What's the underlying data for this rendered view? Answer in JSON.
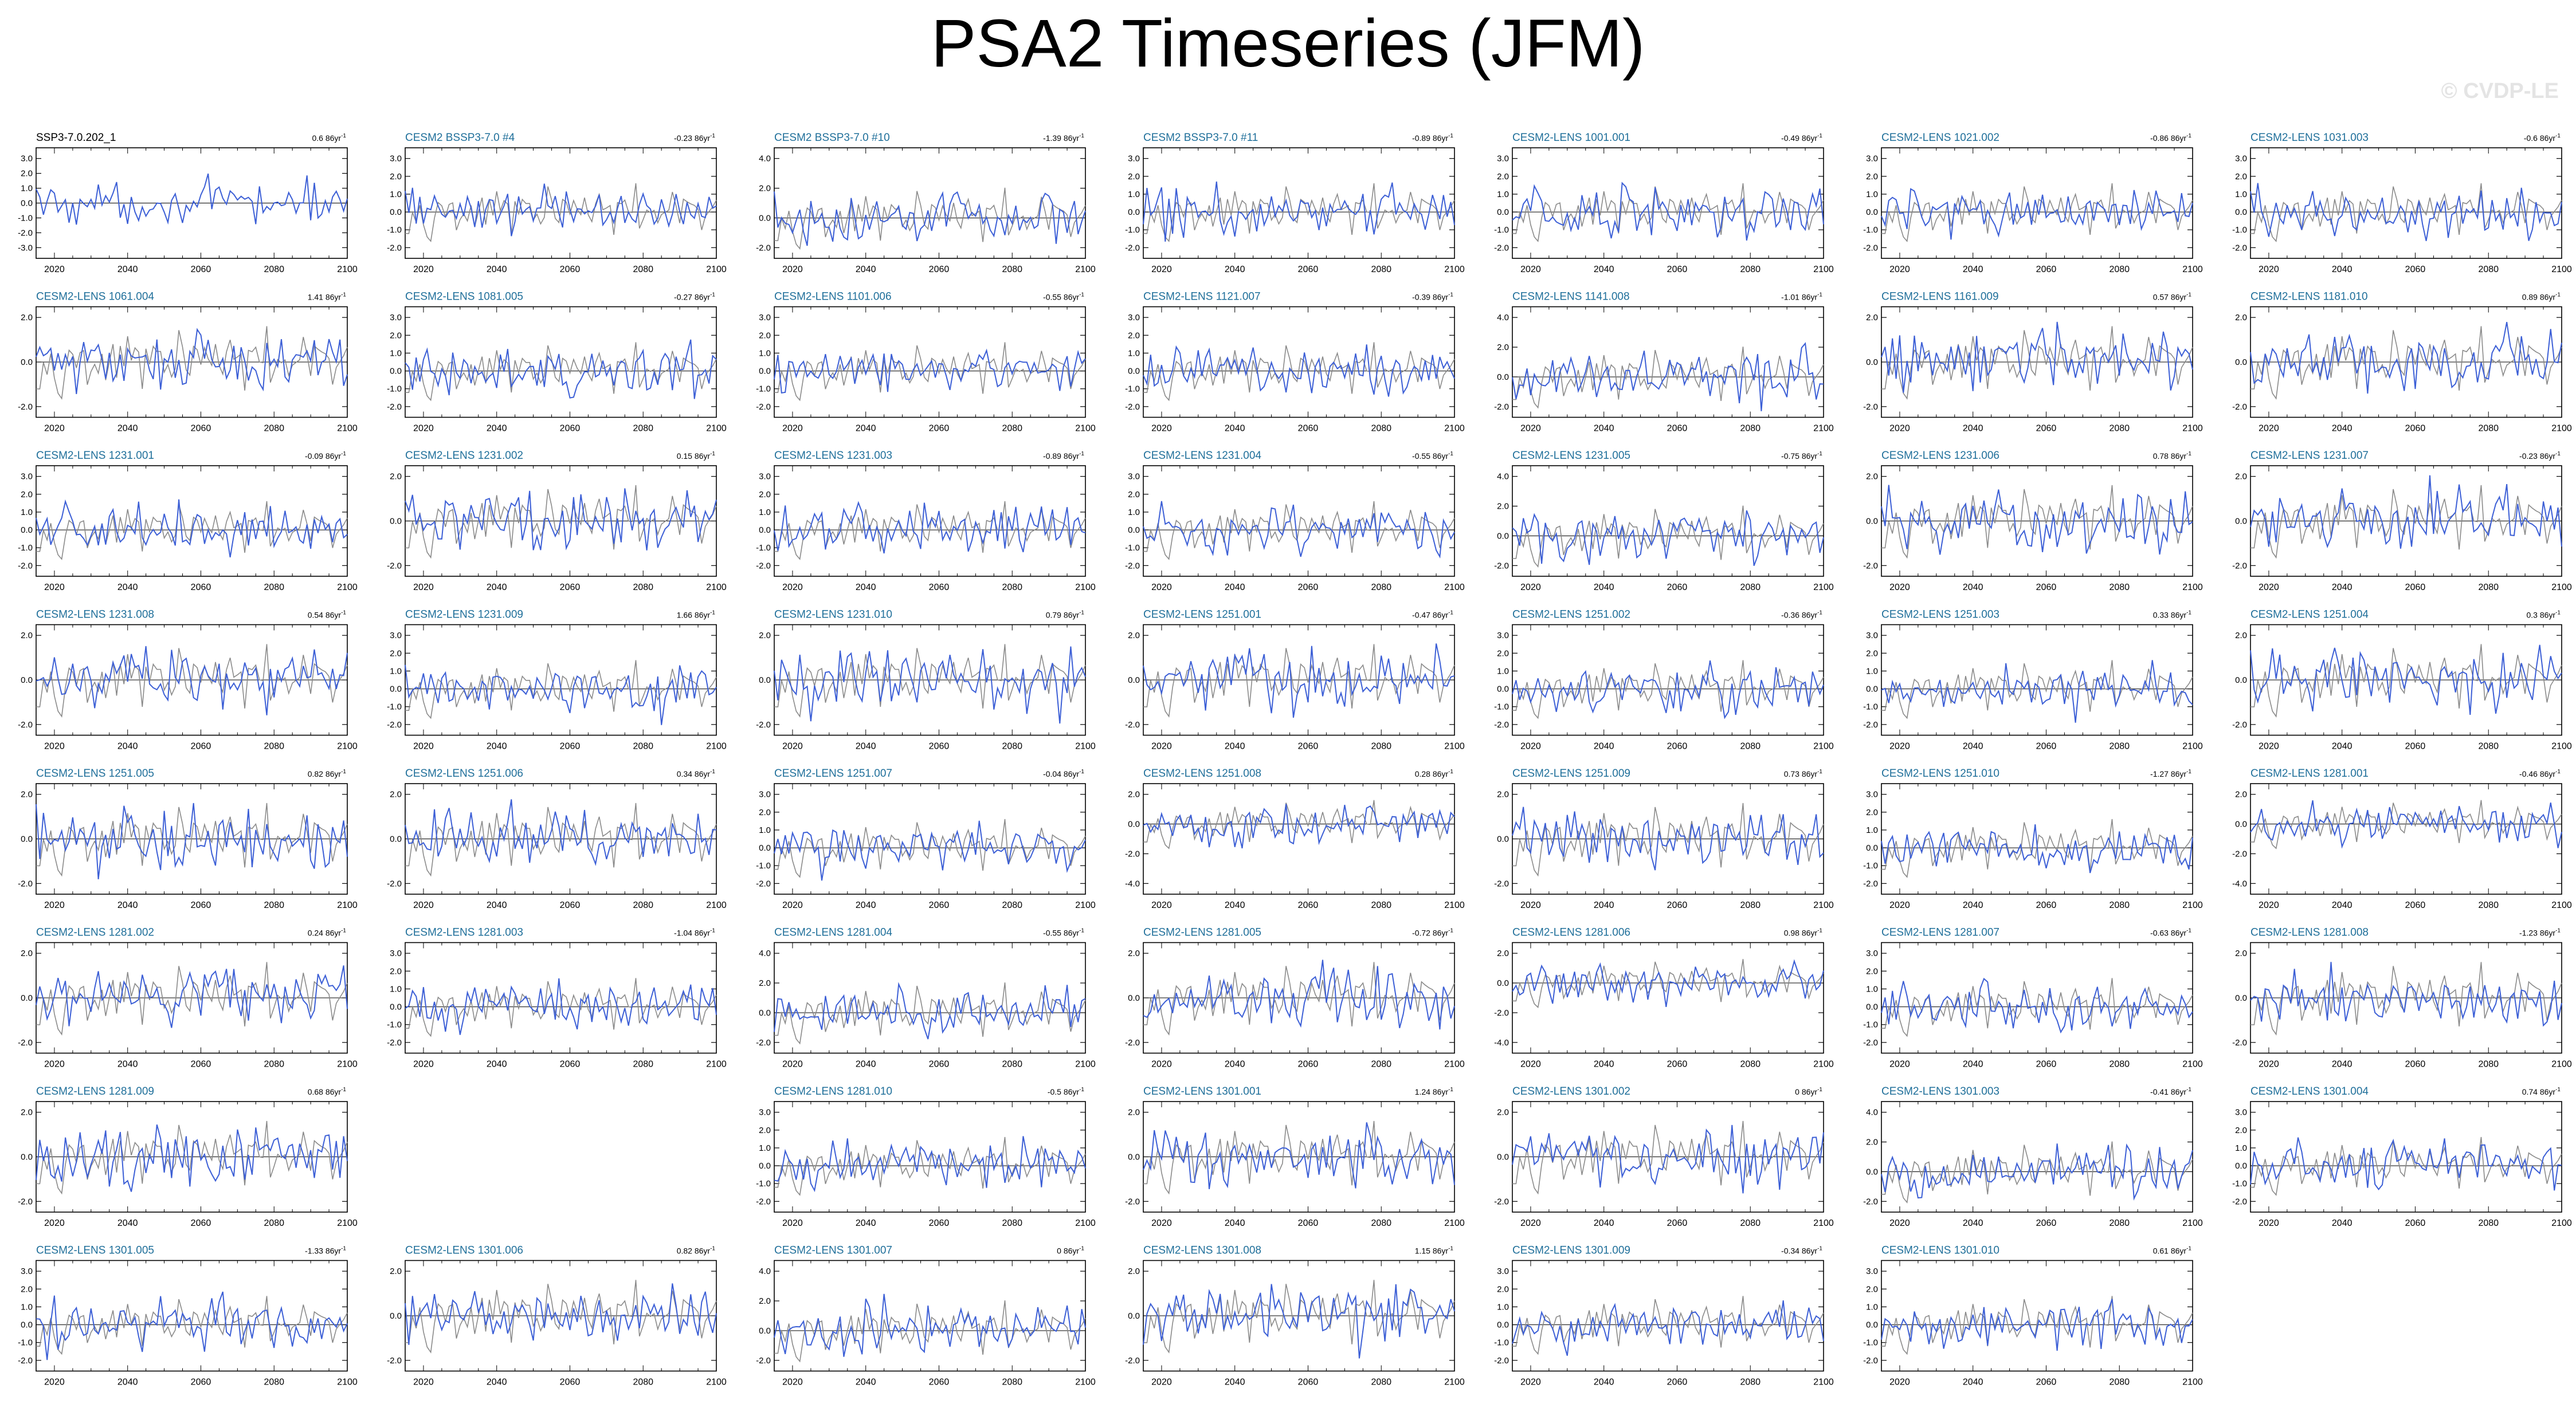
{
  "title": "PSA2 Timeseries (JFM)",
  "watermark": "© CVDP-LE",
  "colors": {
    "member": "#3c5fd6",
    "obs": "#8a8a8a",
    "label": "#1f6f9a",
    "obs_label": "#000000"
  },
  "chart_data": {
    "type": "line",
    "xlim": [
      2015,
      2100
    ],
    "xticks": [
      2020,
      2040,
      2060,
      2080,
      2100
    ],
    "trend_unit": "86yr",
    "panels": [
      {
        "name": "SSP3-7.0.202_1",
        "trend": "0.6",
        "yticks": [
          "3.0",
          "2.0",
          "1.0",
          "0.0",
          "-1.0",
          "-2.0",
          "-3.0"
        ],
        "obs": true
      },
      {
        "name": "CESM2 BSSP3-7.0 #4",
        "trend": "-0.23",
        "yticks": [
          "3.0",
          "2.0",
          "1.0",
          "0.0",
          "-1.0",
          "-2.0"
        ]
      },
      {
        "name": "CESM2 BSSP3-7.0 #10",
        "trend": "-1.39",
        "yticks": [
          "4.0",
          "2.0",
          "0.0",
          "-2.0"
        ]
      },
      {
        "name": "CESM2 BSSP3-7.0 #11",
        "trend": "-0.89",
        "yticks": [
          "3.0",
          "2.0",
          "1.0",
          "0.0",
          "-1.0",
          "-2.0"
        ]
      },
      {
        "name": "CESM2-LENS 1001.001",
        "trend": "-0.49",
        "yticks": [
          "3.0",
          "2.0",
          "1.0",
          "0.0",
          "-1.0",
          "-2.0"
        ]
      },
      {
        "name": "CESM2-LENS 1021.002",
        "trend": "-0.86",
        "yticks": [
          "3.0",
          "2.0",
          "1.0",
          "0.0",
          "-1.0",
          "-2.0"
        ]
      },
      {
        "name": "CESM2-LENS 1031.003",
        "trend": "-0.6",
        "yticks": [
          "3.0",
          "2.0",
          "1.0",
          "0.0",
          "-1.0",
          "-2.0"
        ]
      },
      {
        "name": "CESM2-LENS 1061.004",
        "trend": "1.41",
        "yticks": [
          "2.0",
          "0.0",
          "-2.0"
        ]
      },
      {
        "name": "CESM2-LENS 1081.005",
        "trend": "-0.27",
        "yticks": [
          "3.0",
          "2.0",
          "1.0",
          "0.0",
          "-1.0",
          "-2.0"
        ]
      },
      {
        "name": "CESM2-LENS 1101.006",
        "trend": "-0.55",
        "yticks": [
          "3.0",
          "2.0",
          "1.0",
          "0.0",
          "-1.0",
          "-2.0"
        ]
      },
      {
        "name": "CESM2-LENS 1121.007",
        "trend": "-0.39",
        "yticks": [
          "3.0",
          "2.0",
          "1.0",
          "0.0",
          "-1.0",
          "-2.0"
        ]
      },
      {
        "name": "CESM2-LENS 1141.008",
        "trend": "-1.01",
        "yticks": [
          "4.0",
          "2.0",
          "0.0",
          "-2.0"
        ]
      },
      {
        "name": "CESM2-LENS 1161.009",
        "trend": "0.57",
        "yticks": [
          "2.0",
          "0.0",
          "-2.0"
        ]
      },
      {
        "name": "CESM2-LENS 1181.010",
        "trend": "0.89",
        "yticks": [
          "2.0",
          "0.0",
          "-2.0"
        ]
      },
      {
        "name": "CESM2-LENS 1231.001",
        "trend": "-0.09",
        "yticks": [
          "3.0",
          "2.0",
          "1.0",
          "0.0",
          "-1.0",
          "-2.0"
        ]
      },
      {
        "name": "CESM2-LENS 1231.002",
        "trend": "0.15",
        "yticks": [
          "2.0",
          "0.0",
          "-2.0"
        ]
      },
      {
        "name": "CESM2-LENS 1231.003",
        "trend": "-0.89",
        "yticks": [
          "3.0",
          "2.0",
          "1.0",
          "0.0",
          "-1.0",
          "-2.0"
        ]
      },
      {
        "name": "CESM2-LENS 1231.004",
        "trend": "-0.55",
        "yticks": [
          "3.0",
          "2.0",
          "1.0",
          "0.0",
          "-1.0",
          "-2.0"
        ]
      },
      {
        "name": "CESM2-LENS 1231.005",
        "trend": "-0.75",
        "yticks": [
          "4.0",
          "2.0",
          "0.0",
          "-2.0"
        ]
      },
      {
        "name": "CESM2-LENS 1231.006",
        "trend": "0.78",
        "yticks": [
          "2.0",
          "0.0",
          "-2.0"
        ]
      },
      {
        "name": "CESM2-LENS 1231.007",
        "trend": "-0.23",
        "yticks": [
          "2.0",
          "0.0",
          "-2.0"
        ]
      },
      {
        "name": "CESM2-LENS 1231.008",
        "trend": "0.54",
        "yticks": [
          "2.0",
          "0.0",
          "-2.0"
        ]
      },
      {
        "name": "CESM2-LENS 1231.009",
        "trend": "1.66",
        "yticks": [
          "3.0",
          "2.0",
          "1.0",
          "0.0",
          "-1.0",
          "-2.0"
        ]
      },
      {
        "name": "CESM2-LENS 1231.010",
        "trend": "0.79",
        "yticks": [
          "2.0",
          "0.0",
          "-2.0"
        ]
      },
      {
        "name": "CESM2-LENS 1251.001",
        "trend": "-0.47",
        "yticks": [
          "2.0",
          "0.0",
          "-2.0"
        ]
      },
      {
        "name": "CESM2-LENS 1251.002",
        "trend": "-0.36",
        "yticks": [
          "3.0",
          "2.0",
          "1.0",
          "0.0",
          "-1.0",
          "-2.0"
        ]
      },
      {
        "name": "CESM2-LENS 1251.003",
        "trend": "0.33",
        "yticks": [
          "3.0",
          "2.0",
          "1.0",
          "0.0",
          "-1.0",
          "-2.0"
        ]
      },
      {
        "name": "CESM2-LENS 1251.004",
        "trend": "0.3",
        "yticks": [
          "2.0",
          "0.0",
          "-2.0"
        ]
      },
      {
        "name": "CESM2-LENS 1251.005",
        "trend": "0.82",
        "yticks": [
          "2.0",
          "0.0",
          "-2.0"
        ]
      },
      {
        "name": "CESM2-LENS 1251.006",
        "trend": "0.34",
        "yticks": [
          "2.0",
          "0.0",
          "-2.0"
        ]
      },
      {
        "name": "CESM2-LENS 1251.007",
        "trend": "-0.04",
        "yticks": [
          "3.0",
          "2.0",
          "1.0",
          "0.0",
          "-1.0",
          "-2.0"
        ]
      },
      {
        "name": "CESM2-LENS 1251.008",
        "trend": "0.28",
        "yticks": [
          "2.0",
          "0.0",
          "-2.0",
          "-4.0"
        ]
      },
      {
        "name": "CESM2-LENS 1251.009",
        "trend": "0.73",
        "yticks": [
          "2.0",
          "0.0",
          "-2.0"
        ]
      },
      {
        "name": "CESM2-LENS 1251.010",
        "trend": "-1.27",
        "yticks": [
          "3.0",
          "2.0",
          "1.0",
          "0.0",
          "-1.0",
          "-2.0"
        ]
      },
      {
        "name": "CESM2-LENS 1281.001",
        "trend": "-0.46",
        "yticks": [
          "2.0",
          "0.0",
          "-2.0",
          "-4.0"
        ]
      },
      {
        "name": "CESM2-LENS 1281.002",
        "trend": "0.24",
        "yticks": [
          "2.0",
          "0.0",
          "-2.0"
        ]
      },
      {
        "name": "CESM2-LENS 1281.003",
        "trend": "-1.04",
        "yticks": [
          "3.0",
          "2.0",
          "1.0",
          "0.0",
          "-1.0",
          "-2.0"
        ]
      },
      {
        "name": "CESM2-LENS 1281.004",
        "trend": "-0.55",
        "yticks": [
          "4.0",
          "2.0",
          "0.0",
          "-2.0"
        ]
      },
      {
        "name": "CESM2-LENS 1281.005",
        "trend": "-0.72",
        "yticks": [
          "2.0",
          "0.0",
          "-2.0"
        ]
      },
      {
        "name": "CESM2-LENS 1281.006",
        "trend": "0.98",
        "yticks": [
          "2.0",
          "0.0",
          "-2.0",
          "-4.0"
        ]
      },
      {
        "name": "CESM2-LENS 1281.007",
        "trend": "-0.63",
        "yticks": [
          "3.0",
          "2.0",
          "1.0",
          "0.0",
          "-1.0",
          "-2.0"
        ]
      },
      {
        "name": "CESM2-LENS 1281.008",
        "trend": "-1.23",
        "yticks": [
          "2.0",
          "0.0",
          "-2.0"
        ]
      },
      {
        "name": "CESM2-LENS 1281.009",
        "trend": "0.68",
        "yticks": [
          "2.0",
          "0.0",
          "-2.0"
        ]
      },
      {
        "name": "CESM2-LENS 1281.010",
        "trend": "-0.5",
        "yticks": [
          "3.0",
          "2.0",
          "1.0",
          "0.0",
          "-1.0",
          "-2.0"
        ]
      },
      {
        "name": "CESM2-LENS 1301.001",
        "trend": "1.24",
        "yticks": [
          "2.0",
          "0.0",
          "-2.0"
        ]
      },
      {
        "name": "CESM2-LENS 1301.002",
        "trend": "0",
        "yticks": [
          "2.0",
          "0.0",
          "-2.0"
        ]
      },
      {
        "name": "CESM2-LENS 1301.003",
        "trend": "-0.41",
        "yticks": [
          "4.0",
          "2.0",
          "0.0",
          "-2.0"
        ]
      },
      {
        "name": "CESM2-LENS 1301.004",
        "trend": "0.74",
        "yticks": [
          "3.0",
          "2.0",
          "1.0",
          "0.0",
          "-1.0",
          "-2.0"
        ]
      },
      {
        "name": "CESM2-LENS 1301.005",
        "trend": "-1.33",
        "yticks": [
          "3.0",
          "2.0",
          "1.0",
          "0.0",
          "-1.0",
          "-2.0"
        ]
      },
      {
        "name": "CESM2-LENS 1301.006",
        "trend": "0.82",
        "yticks": [
          "2.0",
          "0.0",
          "-2.0"
        ]
      },
      {
        "name": "CESM2-LENS 1301.007",
        "trend": "0",
        "yticks": [
          "4.0",
          "2.0",
          "0.0",
          "-2.0"
        ]
      },
      {
        "name": "CESM2-LENS 1301.008",
        "trend": "1.15",
        "yticks": [
          "2.0",
          "0.0",
          "-2.0"
        ]
      },
      {
        "name": "CESM2-LENS 1301.009",
        "trend": "-0.34",
        "yticks": [
          "3.0",
          "2.0",
          "1.0",
          "0.0",
          "-1.0",
          "-2.0"
        ]
      },
      {
        "name": "CESM2-LENS 1301.010",
        "trend": "0.61",
        "yticks": [
          "3.0",
          "2.0",
          "1.0",
          "0.0",
          "-1.0",
          "-2.0"
        ]
      }
    ]
  }
}
